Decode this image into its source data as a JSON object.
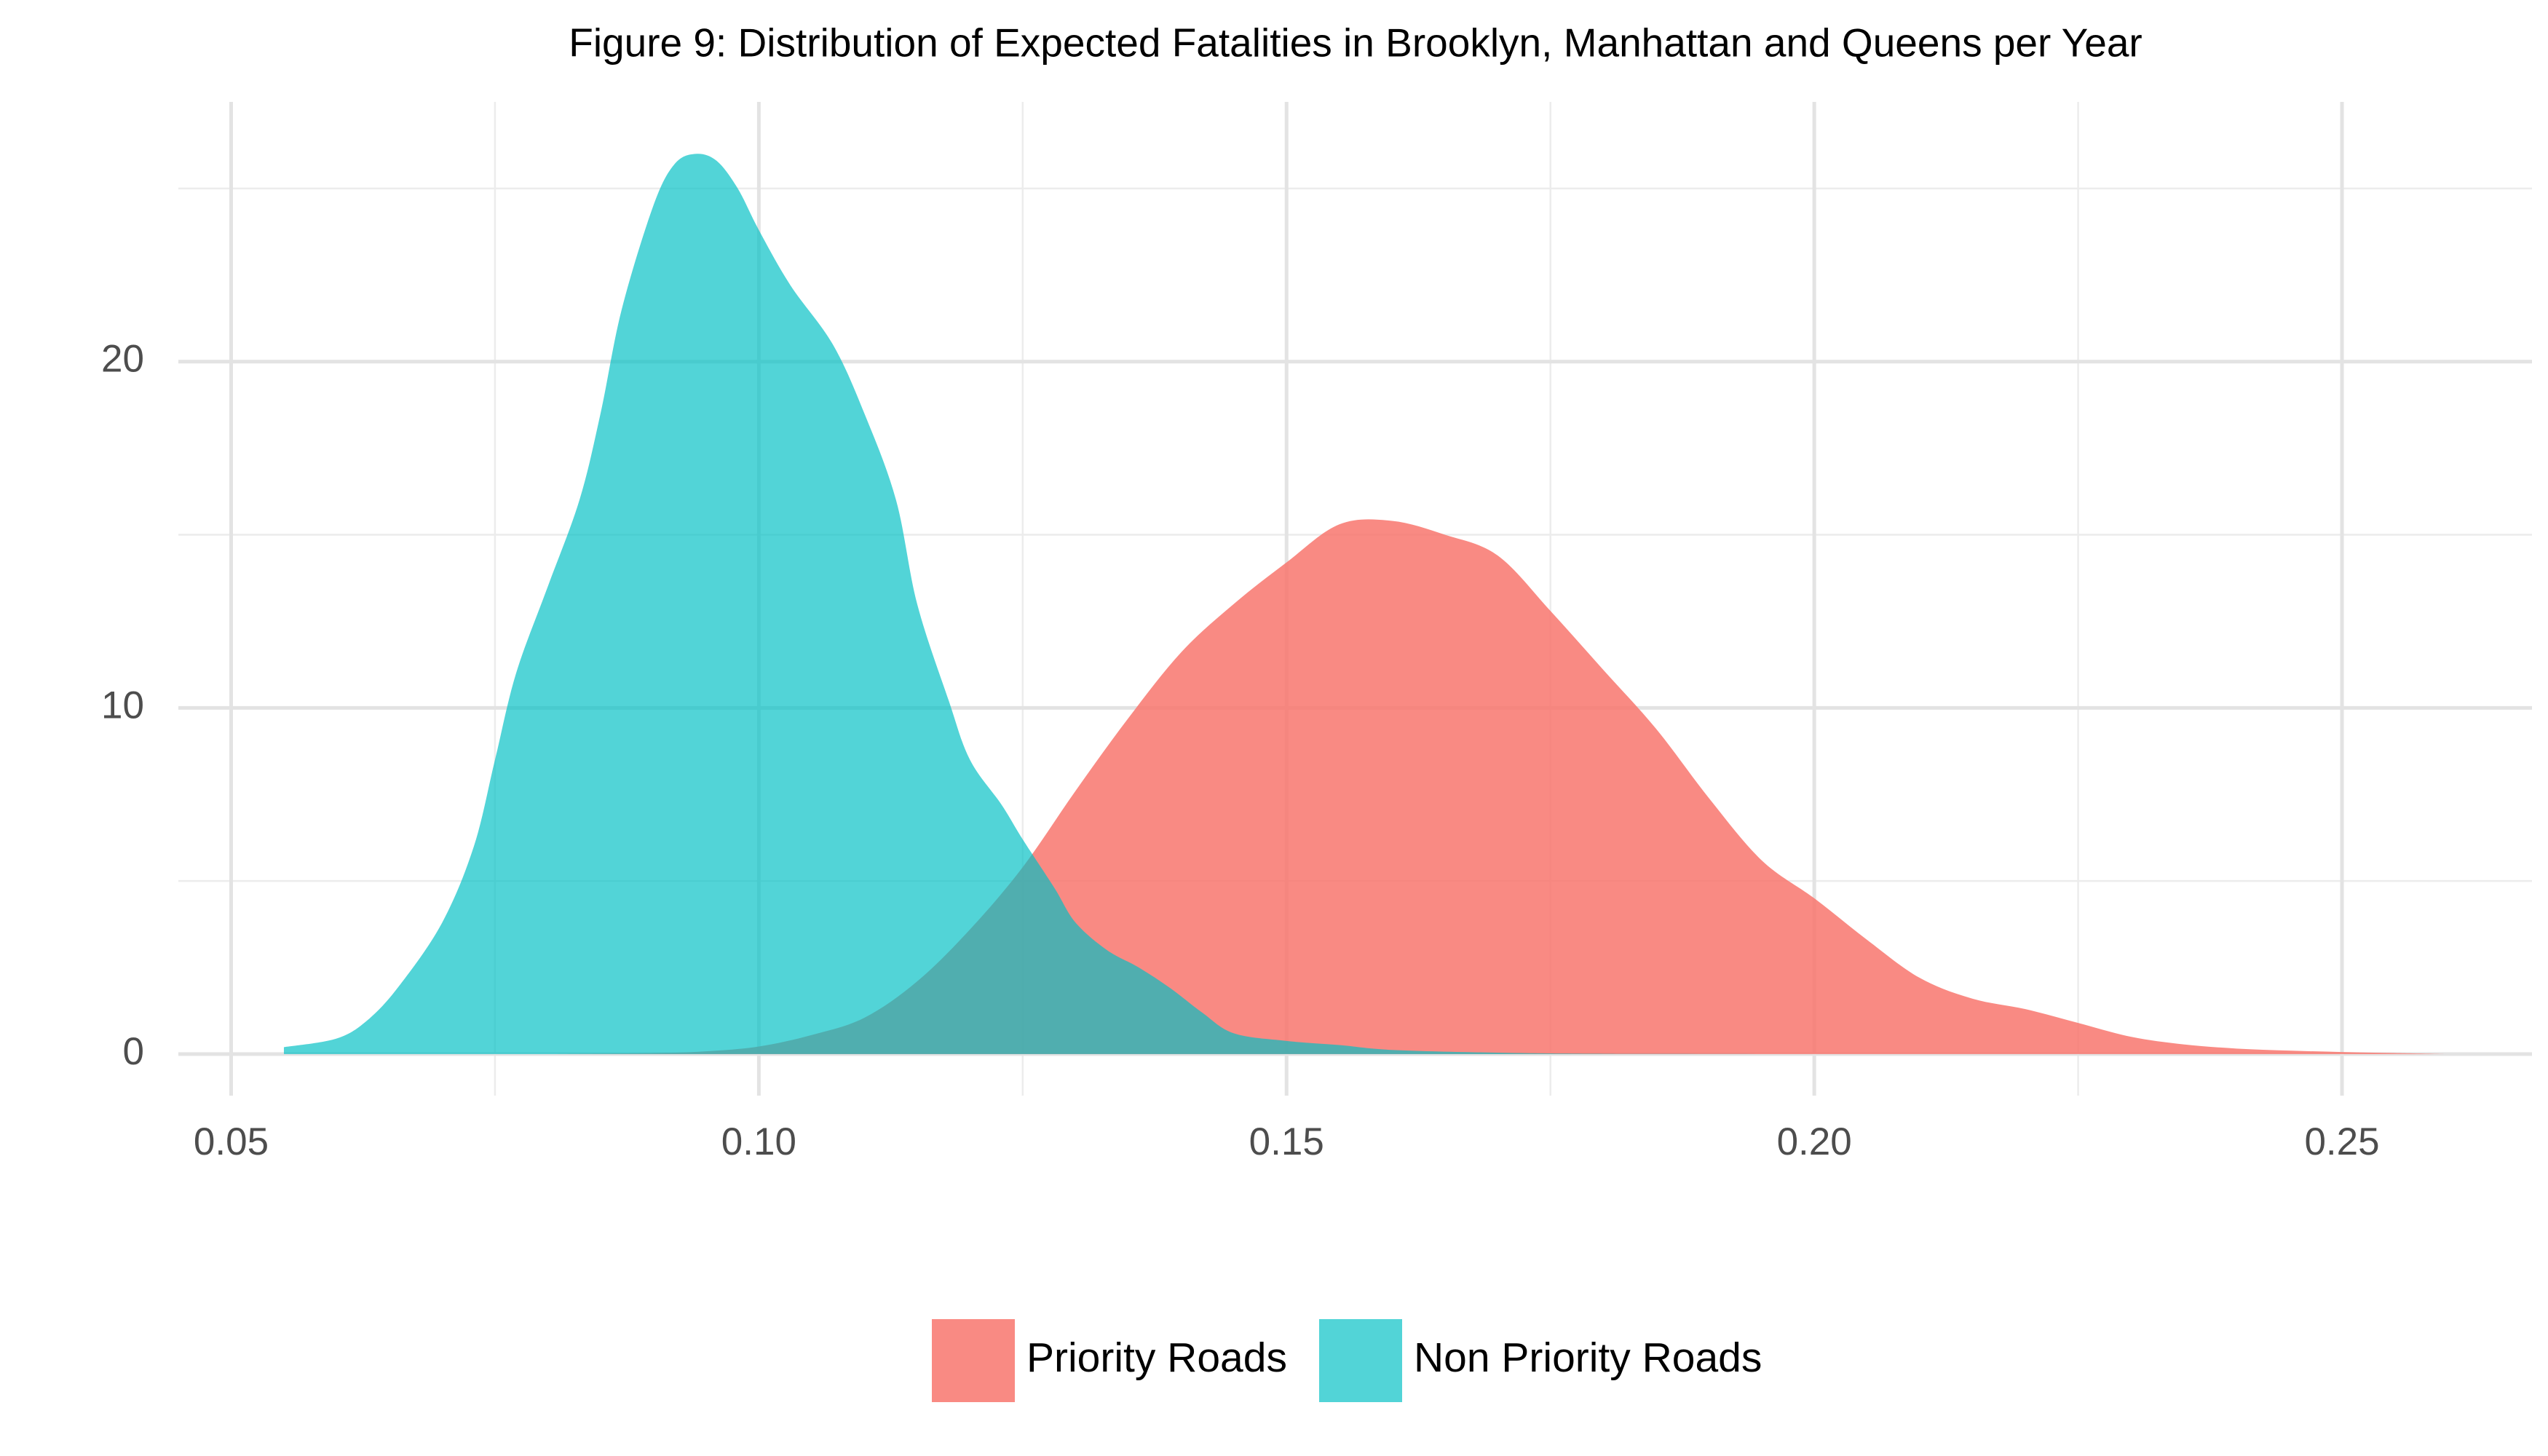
{
  "chart_data": {
    "type": "area",
    "subtype": "density",
    "title": "Figure 9: Distribution of Expected Fatalities in Brooklyn, Manhattan and Queens per Year",
    "xlabel": "",
    "ylabel": "",
    "xlim": [
      0.045,
      0.268
    ],
    "ylim": [
      -1.2,
      27.5
    ],
    "x_ticks": [
      {
        "value": 0.05,
        "label": "0.05"
      },
      {
        "value": 0.1,
        "label": "0.10"
      },
      {
        "value": 0.15,
        "label": "0.15"
      },
      {
        "value": 0.2,
        "label": "0.20"
      },
      {
        "value": 0.25,
        "label": "0.25"
      }
    ],
    "x_minor_ticks": [
      0.075,
      0.125,
      0.175,
      0.225
    ],
    "y_ticks": [
      {
        "value": 0,
        "label": "0"
      },
      {
        "value": 10,
        "label": "10"
      },
      {
        "value": 20,
        "label": "20"
      }
    ],
    "y_minor_ticks": [
      5,
      15,
      25
    ],
    "grid": true,
    "legend_position": "bottom",
    "colors": {
      "grid_major": "#e3e3e3",
      "grid_minor": "#ececec"
    },
    "series": [
      {
        "name": "Priority Roads",
        "color": "#f8766d",
        "opacity": 0.85,
        "points": [
          [
            0.08,
            0.0
          ],
          [
            0.09,
            0.03
          ],
          [
            0.095,
            0.08
          ],
          [
            0.1,
            0.22
          ],
          [
            0.105,
            0.55
          ],
          [
            0.11,
            1.05
          ],
          [
            0.115,
            2.1
          ],
          [
            0.12,
            3.6
          ],
          [
            0.125,
            5.4
          ],
          [
            0.13,
            7.6
          ],
          [
            0.135,
            9.7
          ],
          [
            0.14,
            11.6
          ],
          [
            0.145,
            13.0
          ],
          [
            0.15,
            14.2
          ],
          [
            0.155,
            15.3
          ],
          [
            0.16,
            15.4
          ],
          [
            0.165,
            15.0
          ],
          [
            0.17,
            14.4
          ],
          [
            0.175,
            12.8
          ],
          [
            0.18,
            11.1
          ],
          [
            0.185,
            9.4
          ],
          [
            0.19,
            7.4
          ],
          [
            0.195,
            5.6
          ],
          [
            0.2,
            4.5
          ],
          [
            0.205,
            3.3
          ],
          [
            0.21,
            2.2
          ],
          [
            0.215,
            1.6
          ],
          [
            0.22,
            1.3
          ],
          [
            0.225,
            0.9
          ],
          [
            0.23,
            0.5
          ],
          [
            0.235,
            0.28
          ],
          [
            0.24,
            0.16
          ],
          [
            0.245,
            0.1
          ],
          [
            0.25,
            0.06
          ],
          [
            0.255,
            0.03
          ],
          [
            0.26,
            0.0
          ]
        ]
      },
      {
        "name": "Non Priority Roads",
        "color": "#00bfc4",
        "opacity": 0.68,
        "points": [
          [
            0.055,
            0.2
          ],
          [
            0.06,
            0.45
          ],
          [
            0.063,
            1.0
          ],
          [
            0.066,
            2.0
          ],
          [
            0.07,
            3.8
          ],
          [
            0.073,
            6.0
          ],
          [
            0.075,
            8.5
          ],
          [
            0.077,
            11.0
          ],
          [
            0.08,
            13.5
          ],
          [
            0.083,
            16.0
          ],
          [
            0.085,
            18.5
          ],
          [
            0.087,
            21.5
          ],
          [
            0.09,
            24.5
          ],
          [
            0.092,
            25.7
          ],
          [
            0.094,
            26.0
          ],
          [
            0.096,
            25.8
          ],
          [
            0.098,
            25.0
          ],
          [
            0.1,
            23.8
          ],
          [
            0.103,
            22.2
          ],
          [
            0.107,
            20.5
          ],
          [
            0.11,
            18.5
          ],
          [
            0.113,
            16.0
          ],
          [
            0.115,
            13.0
          ],
          [
            0.118,
            10.2
          ],
          [
            0.12,
            8.5
          ],
          [
            0.123,
            7.2
          ],
          [
            0.125,
            6.2
          ],
          [
            0.128,
            4.8
          ],
          [
            0.13,
            3.8
          ],
          [
            0.133,
            3.0
          ],
          [
            0.136,
            2.5
          ],
          [
            0.139,
            1.9
          ],
          [
            0.142,
            1.2
          ],
          [
            0.145,
            0.6
          ],
          [
            0.15,
            0.38
          ],
          [
            0.155,
            0.26
          ],
          [
            0.16,
            0.12
          ],
          [
            0.17,
            0.04
          ],
          [
            0.18,
            0.01
          ],
          [
            0.2,
            0.0
          ]
        ]
      }
    ]
  }
}
